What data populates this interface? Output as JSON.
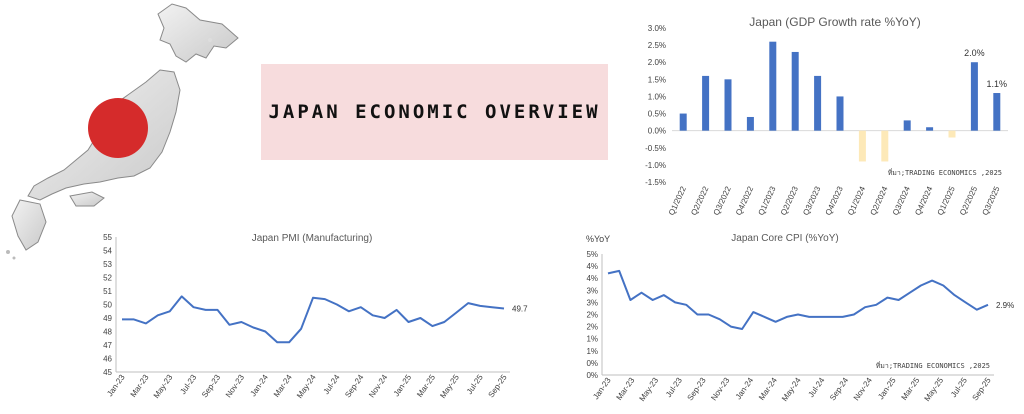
{
  "page_title": "JAPAN ECONOMIC OVERVIEW",
  "colors": {
    "bar_positive": "#4472c4",
    "bar_negative": "#fde9b8",
    "line": "#4472c4",
    "title_bg": "#f7dcdd",
    "flag_red": "#d52b2b"
  },
  "icons": {
    "map": "japan-map-icon",
    "flag": "japan-flag-circle"
  },
  "chart_data": [
    {
      "type": "bar",
      "title": "Japan  (GDP Growth rate %YoY)",
      "source": "ที่มา;TRADING ECONOMICS ,2025",
      "categories": [
        "Q1/2022",
        "Q2/2022",
        "Q3/2022",
        "Q4/2022",
        "Q1/2023",
        "Q2/2023",
        "Q3/2023",
        "Q4/2023",
        "Q1/2024",
        "Q2/2024",
        "Q3/2024",
        "Q4/2024",
        "Q1/2025",
        "Q2/2025",
        "Q3/2025"
      ],
      "values": [
        0.5,
        1.6,
        1.5,
        0.4,
        2.6,
        2.3,
        1.6,
        1.0,
        -0.9,
        -0.9,
        0.3,
        0.1,
        -0.2,
        2.0,
        1.1
      ],
      "value_labels": {
        "13": "2.0%",
        "14": "1.1%"
      },
      "y_ticks": [
        "3.0%",
        "2.5%",
        "2.0%",
        "1.5%",
        "1.0%",
        "0.5%",
        "0.0%",
        "-0.5%",
        "-1.0%",
        "-1.5%"
      ],
      "ylim": [
        -1.5,
        3.0
      ]
    },
    {
      "type": "line",
      "title": "Japan PMI (Manufacturing)",
      "x_ticks": [
        "Jan-23",
        "Mar-23",
        "May-23",
        "Jul-23",
        "Sep-23",
        "Nov-23",
        "Jan-24",
        "Mar-24",
        "May-24",
        "Jul-24",
        "Sep-24",
        "Nov-24",
        "Jan-25",
        "Mar-25",
        "May-25",
        "Jul-25",
        "Sep-25"
      ],
      "y_ticks": [
        "55",
        "54",
        "53",
        "52",
        "51",
        "50",
        "49",
        "48",
        "47",
        "46",
        "45"
      ],
      "ylim": [
        45,
        55
      ],
      "values": [
        48.9,
        48.9,
        48.6,
        49.2,
        49.5,
        50.6,
        49.8,
        49.6,
        49.6,
        48.5,
        48.7,
        48.3,
        48.0,
        47.2,
        47.2,
        48.2,
        50.5,
        50.4,
        50.0,
        49.5,
        49.8,
        49.2,
        49.0,
        49.6,
        48.7,
        49.0,
        48.4,
        48.7,
        49.4,
        50.1,
        49.9,
        49.8,
        49.7
      ],
      "end_label": "49.7"
    },
    {
      "type": "line",
      "title": "Japan Core CPI (%YoY)",
      "ylabel": "%YoY",
      "source": "ที่มา;TRADING ECONOMICS ,2025",
      "x_ticks": [
        "Jan-23",
        "Mar-23",
        "May-23",
        "Jul-23",
        "Sep-23",
        "Nov-23",
        "Jan-24",
        "Mar-24",
        "May-24",
        "Jul-24",
        "Sep-24",
        "Nov-24",
        "Jan-25",
        "Mar-25",
        "May-25",
        "Jul-25",
        "Sep-25"
      ],
      "y_ticks": [
        "5%",
        "4%",
        "4%",
        "3%",
        "3%",
        "2%",
        "2%",
        "1%",
        "1%",
        "0%",
        "0%"
      ],
      "ylim": [
        0,
        5
      ],
      "values": [
        4.2,
        4.3,
        3.1,
        3.4,
        3.1,
        3.3,
        3.0,
        2.9,
        2.5,
        2.5,
        2.3,
        2.0,
        1.9,
        2.6,
        2.4,
        2.2,
        2.4,
        2.5,
        2.4,
        2.4,
        2.4,
        2.4,
        2.5,
        2.8,
        2.9,
        3.2,
        3.1,
        3.4,
        3.7,
        3.9,
        3.7,
        3.3,
        3.0,
        2.7,
        2.9
      ],
      "end_label": "2.9%"
    }
  ]
}
